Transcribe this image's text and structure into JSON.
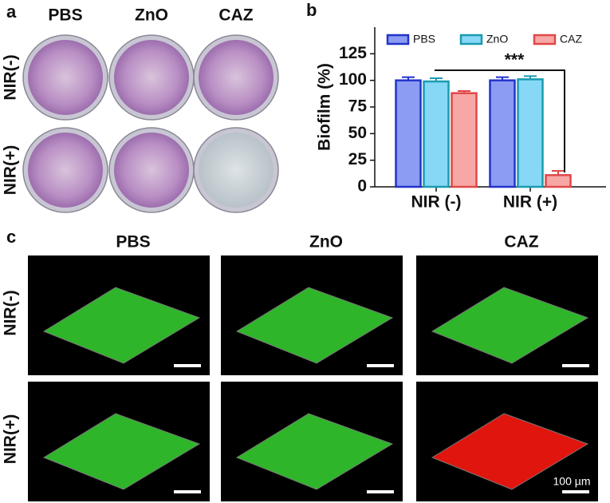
{
  "panel_labels": [
    "a",
    "b",
    "c"
  ],
  "photo_panel": {
    "columns": [
      "PBS",
      "ZnO",
      "CAZ"
    ],
    "rows": [
      "NIR(-)",
      "NIR(+)"
    ]
  },
  "chart_data": {
    "type": "bar",
    "y_label": "Biofilm (%)",
    "categories": [
      "NIR (-)",
      "NIR (+)"
    ],
    "series": [
      {
        "name": "PBS",
        "color": "#8c9cf2",
        "edge": "#2233cc",
        "values": [
          100,
          100
        ],
        "errors": [
          3,
          3
        ]
      },
      {
        "name": "ZnO",
        "color": "#86d8f6",
        "edge": "#1a9bb0",
        "values": [
          99,
          101
        ],
        "errors": [
          3,
          3
        ]
      },
      {
        "name": "CAZ",
        "color": "#f7a8a6",
        "edge": "#e04848",
        "values": [
          88,
          11
        ],
        "errors": [
          2,
          4
        ]
      }
    ],
    "ylim": [
      0,
      150
    ],
    "yticks": [
      0,
      25,
      50,
      75,
      100,
      125
    ],
    "annotation": "***",
    "legend": "top"
  },
  "microscopy_panel": {
    "columns": [
      "PBS",
      "ZnO",
      "CAZ"
    ],
    "rows": [
      "NIR(-)",
      "NIR(+)"
    ],
    "scale_bar": "100 µm"
  }
}
